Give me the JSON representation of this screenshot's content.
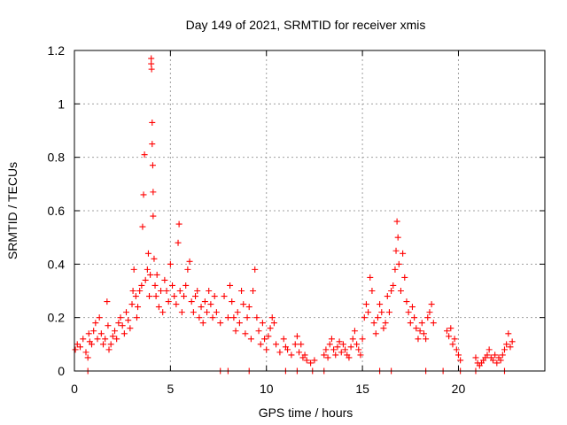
{
  "chart_data": {
    "type": "scatter",
    "title": "Day 149 of 2021, SRMTID for receiver xmis",
    "xlabel": "GPS time / hours",
    "ylabel": "SRMTID / TECUs",
    "xlim": [
      0,
      24.5
    ],
    "ylim": [
      0,
      1.2
    ],
    "xticks": [
      0,
      5,
      10,
      15,
      20
    ],
    "xtick_labels": [
      "0",
      "5",
      "10",
      "15",
      "20"
    ],
    "yticks": [
      0,
      0.2,
      0.4,
      0.6,
      0.8,
      1.0,
      1.2
    ],
    "ytick_labels": [
      "0",
      "0.2",
      "0.4",
      "0.6",
      "0.8",
      "1",
      "1.2"
    ],
    "grid": true,
    "marker": "+",
    "series": [
      {
        "name": "SRMTID",
        "color": "#ff0000",
        "x": [
          0.05,
          0.15,
          0.3,
          0.45,
          0.6,
          0.7,
          0.75,
          0.8,
          0.9,
          1.0,
          1.1,
          1.2,
          1.3,
          1.4,
          1.5,
          1.6,
          1.7,
          1.75,
          1.8,
          1.9,
          2.0,
          2.1,
          2.2,
          2.3,
          2.4,
          2.5,
          2.6,
          2.7,
          2.8,
          2.9,
          3.0,
          3.05,
          3.1,
          3.2,
          3.25,
          3.3,
          3.4,
          3.5,
          3.55,
          3.6,
          3.65,
          3.7,
          3.8,
          3.85,
          3.9,
          3.95,
          4.0,
          4.0,
          4.02,
          4.05,
          4.05,
          4.08,
          4.1,
          4.1,
          4.15,
          4.2,
          4.25,
          4.3,
          4.4,
          4.5,
          4.6,
          4.7,
          4.8,
          4.9,
          5.0,
          5.1,
          5.2,
          5.3,
          5.4,
          5.45,
          5.5,
          5.6,
          5.7,
          5.8,
          5.9,
          6.0,
          6.1,
          6.2,
          6.3,
          6.4,
          6.5,
          6.6,
          6.7,
          6.8,
          6.9,
          7.0,
          7.1,
          7.2,
          7.3,
          7.4,
          7.6,
          7.8,
          8.0,
          8.1,
          8.2,
          8.3,
          8.4,
          8.5,
          8.6,
          8.7,
          8.8,
          8.9,
          9.0,
          9.1,
          9.2,
          9.3,
          9.4,
          9.5,
          9.6,
          9.7,
          9.8,
          9.9,
          10.0,
          10.1,
          10.2,
          10.3,
          10.4,
          10.5,
          10.7,
          10.9,
          11.0,
          11.1,
          11.3,
          11.5,
          11.6,
          11.7,
          11.8,
          11.9,
          12.0,
          12.1,
          12.3,
          12.5,
          13.0,
          13.1,
          13.2,
          13.3,
          13.4,
          13.5,
          13.6,
          13.7,
          13.8,
          13.9,
          14.0,
          14.1,
          14.2,
          14.3,
          14.4,
          14.5,
          14.6,
          14.7,
          14.8,
          14.9,
          15.0,
          15.1,
          15.2,
          15.3,
          15.4,
          15.5,
          15.6,
          15.7,
          15.8,
          15.9,
          16.0,
          16.1,
          16.2,
          16.3,
          16.4,
          16.5,
          16.6,
          16.7,
          16.75,
          16.8,
          16.85,
          16.9,
          17.0,
          17.1,
          17.2,
          17.3,
          17.4,
          17.5,
          17.6,
          17.7,
          17.8,
          17.9,
          18.0,
          18.1,
          18.2,
          18.3,
          18.4,
          18.5,
          18.6,
          18.7,
          19.4,
          19.5,
          19.6,
          19.7,
          19.8,
          19.9,
          20.0,
          20.1,
          20.9,
          21.0,
          21.1,
          21.2,
          21.3,
          21.4,
          21.5,
          21.6,
          21.7,
          21.8,
          21.9,
          22.0,
          22.1,
          22.2,
          22.3,
          22.4,
          22.5,
          22.6,
          22.7,
          22.8,
          0.7,
          7.6,
          8.0,
          9.1,
          11.0,
          11.6,
          12.4,
          13.0,
          15.9,
          16.5,
          18.3,
          19.2,
          20.1,
          20.9,
          22.4
        ],
        "y": [
          0.08,
          0.1,
          0.09,
          0.12,
          0.07,
          0.05,
          0.14,
          0.11,
          0.1,
          0.15,
          0.18,
          0.12,
          0.2,
          0.14,
          0.1,
          0.12,
          0.26,
          0.17,
          0.08,
          0.1,
          0.13,
          0.15,
          0.12,
          0.18,
          0.2,
          0.17,
          0.14,
          0.22,
          0.19,
          0.16,
          0.25,
          0.3,
          0.38,
          0.28,
          0.2,
          0.24,
          0.3,
          0.32,
          0.54,
          0.66,
          0.81,
          0.34,
          0.38,
          0.44,
          0.28,
          0.36,
          1.17,
          1.15,
          1.13,
          0.93,
          0.85,
          0.77,
          0.67,
          0.58,
          0.42,
          0.32,
          0.28,
          0.36,
          0.24,
          0.3,
          0.22,
          0.34,
          0.3,
          0.26,
          0.4,
          0.32,
          0.28,
          0.25,
          0.48,
          0.55,
          0.3,
          0.22,
          0.28,
          0.32,
          0.38,
          0.41,
          0.26,
          0.22,
          0.28,
          0.3,
          0.2,
          0.24,
          0.18,
          0.26,
          0.22,
          0.3,
          0.25,
          0.2,
          0.28,
          0.22,
          0.18,
          0.28,
          0.2,
          0.32,
          0.26,
          0.2,
          0.15,
          0.22,
          0.18,
          0.3,
          0.25,
          0.14,
          0.2,
          0.24,
          0.12,
          0.3,
          0.38,
          0.2,
          0.15,
          0.1,
          0.18,
          0.12,
          0.08,
          0.13,
          0.16,
          0.2,
          0.18,
          0.1,
          0.07,
          0.12,
          0.09,
          0.08,
          0.06,
          0.1,
          0.13,
          0.07,
          0.1,
          0.05,
          0.06,
          0.04,
          0.03,
          0.04,
          0.06,
          0.08,
          0.05,
          0.1,
          0.12,
          0.08,
          0.06,
          0.09,
          0.11,
          0.07,
          0.1,
          0.08,
          0.06,
          0.05,
          0.09,
          0.12,
          0.15,
          0.1,
          0.08,
          0.06,
          0.12,
          0.2,
          0.25,
          0.22,
          0.35,
          0.3,
          0.18,
          0.14,
          0.2,
          0.25,
          0.22,
          0.16,
          0.18,
          0.28,
          0.22,
          0.3,
          0.32,
          0.38,
          0.45,
          0.56,
          0.5,
          0.4,
          0.3,
          0.44,
          0.35,
          0.26,
          0.22,
          0.18,
          0.24,
          0.2,
          0.16,
          0.12,
          0.15,
          0.18,
          0.14,
          0.12,
          0.2,
          0.22,
          0.25,
          0.18,
          0.15,
          0.13,
          0.16,
          0.1,
          0.12,
          0.08,
          0.06,
          0.04,
          0.05,
          0.03,
          0.02,
          0.03,
          0.04,
          0.05,
          0.06,
          0.08,
          0.05,
          0.04,
          0.06,
          0.03,
          0.05,
          0.04,
          0.06,
          0.08,
          0.1,
          0.14,
          0.09,
          0.11,
          0.0,
          0.0,
          0.0,
          0.0,
          0.0,
          0.0,
          0.0,
          0.0,
          0.0,
          0.0,
          0.0,
          0.0,
          0.0,
          0.0,
          0.0
        ]
      }
    ]
  }
}
